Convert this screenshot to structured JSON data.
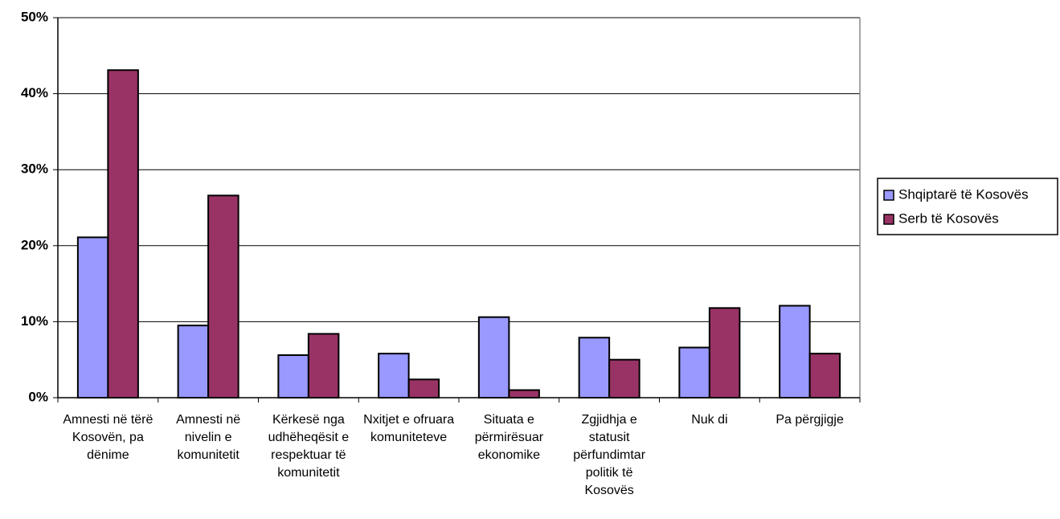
{
  "chart_data": {
    "type": "bar",
    "categories": [
      "Amnesti në tërë Kosovën, pa dënime",
      "Amnesti në nivelin e komunitetit",
      "Kërkesë nga udhëheqësit e respektuar të komunitetit",
      "Nxitjet e ofruara komuniteteve",
      "Situata e përmirësuar ekonomike",
      "Zgjidhja e statusit përfundimtar politik të Kosovës",
      "Nuk di",
      "Pa përgjigje"
    ],
    "series": [
      {
        "name": "Shqiptarë të Kosovës",
        "color": "#9999ff",
        "values": [
          21.1,
          9.5,
          5.6,
          5.8,
          10.6,
          7.9,
          6.6,
          12.1
        ]
      },
      {
        "name": "Serb të Kosovës",
        "color": "#993366",
        "values": [
          43.1,
          26.6,
          8.4,
          2.4,
          1.0,
          5.0,
          11.8,
          5.8
        ]
      }
    ],
    "ylim": [
      0,
      50
    ],
    "yticks": [
      {
        "value": 0,
        "label": "0%"
      },
      {
        "value": 10,
        "label": "10%"
      },
      {
        "value": 20,
        "label": "20%"
      },
      {
        "value": 30,
        "label": "30%"
      },
      {
        "value": 40,
        "label": "40%"
      },
      {
        "value": 50,
        "label": "50%"
      }
    ],
    "grid": true,
    "legend": "right"
  }
}
